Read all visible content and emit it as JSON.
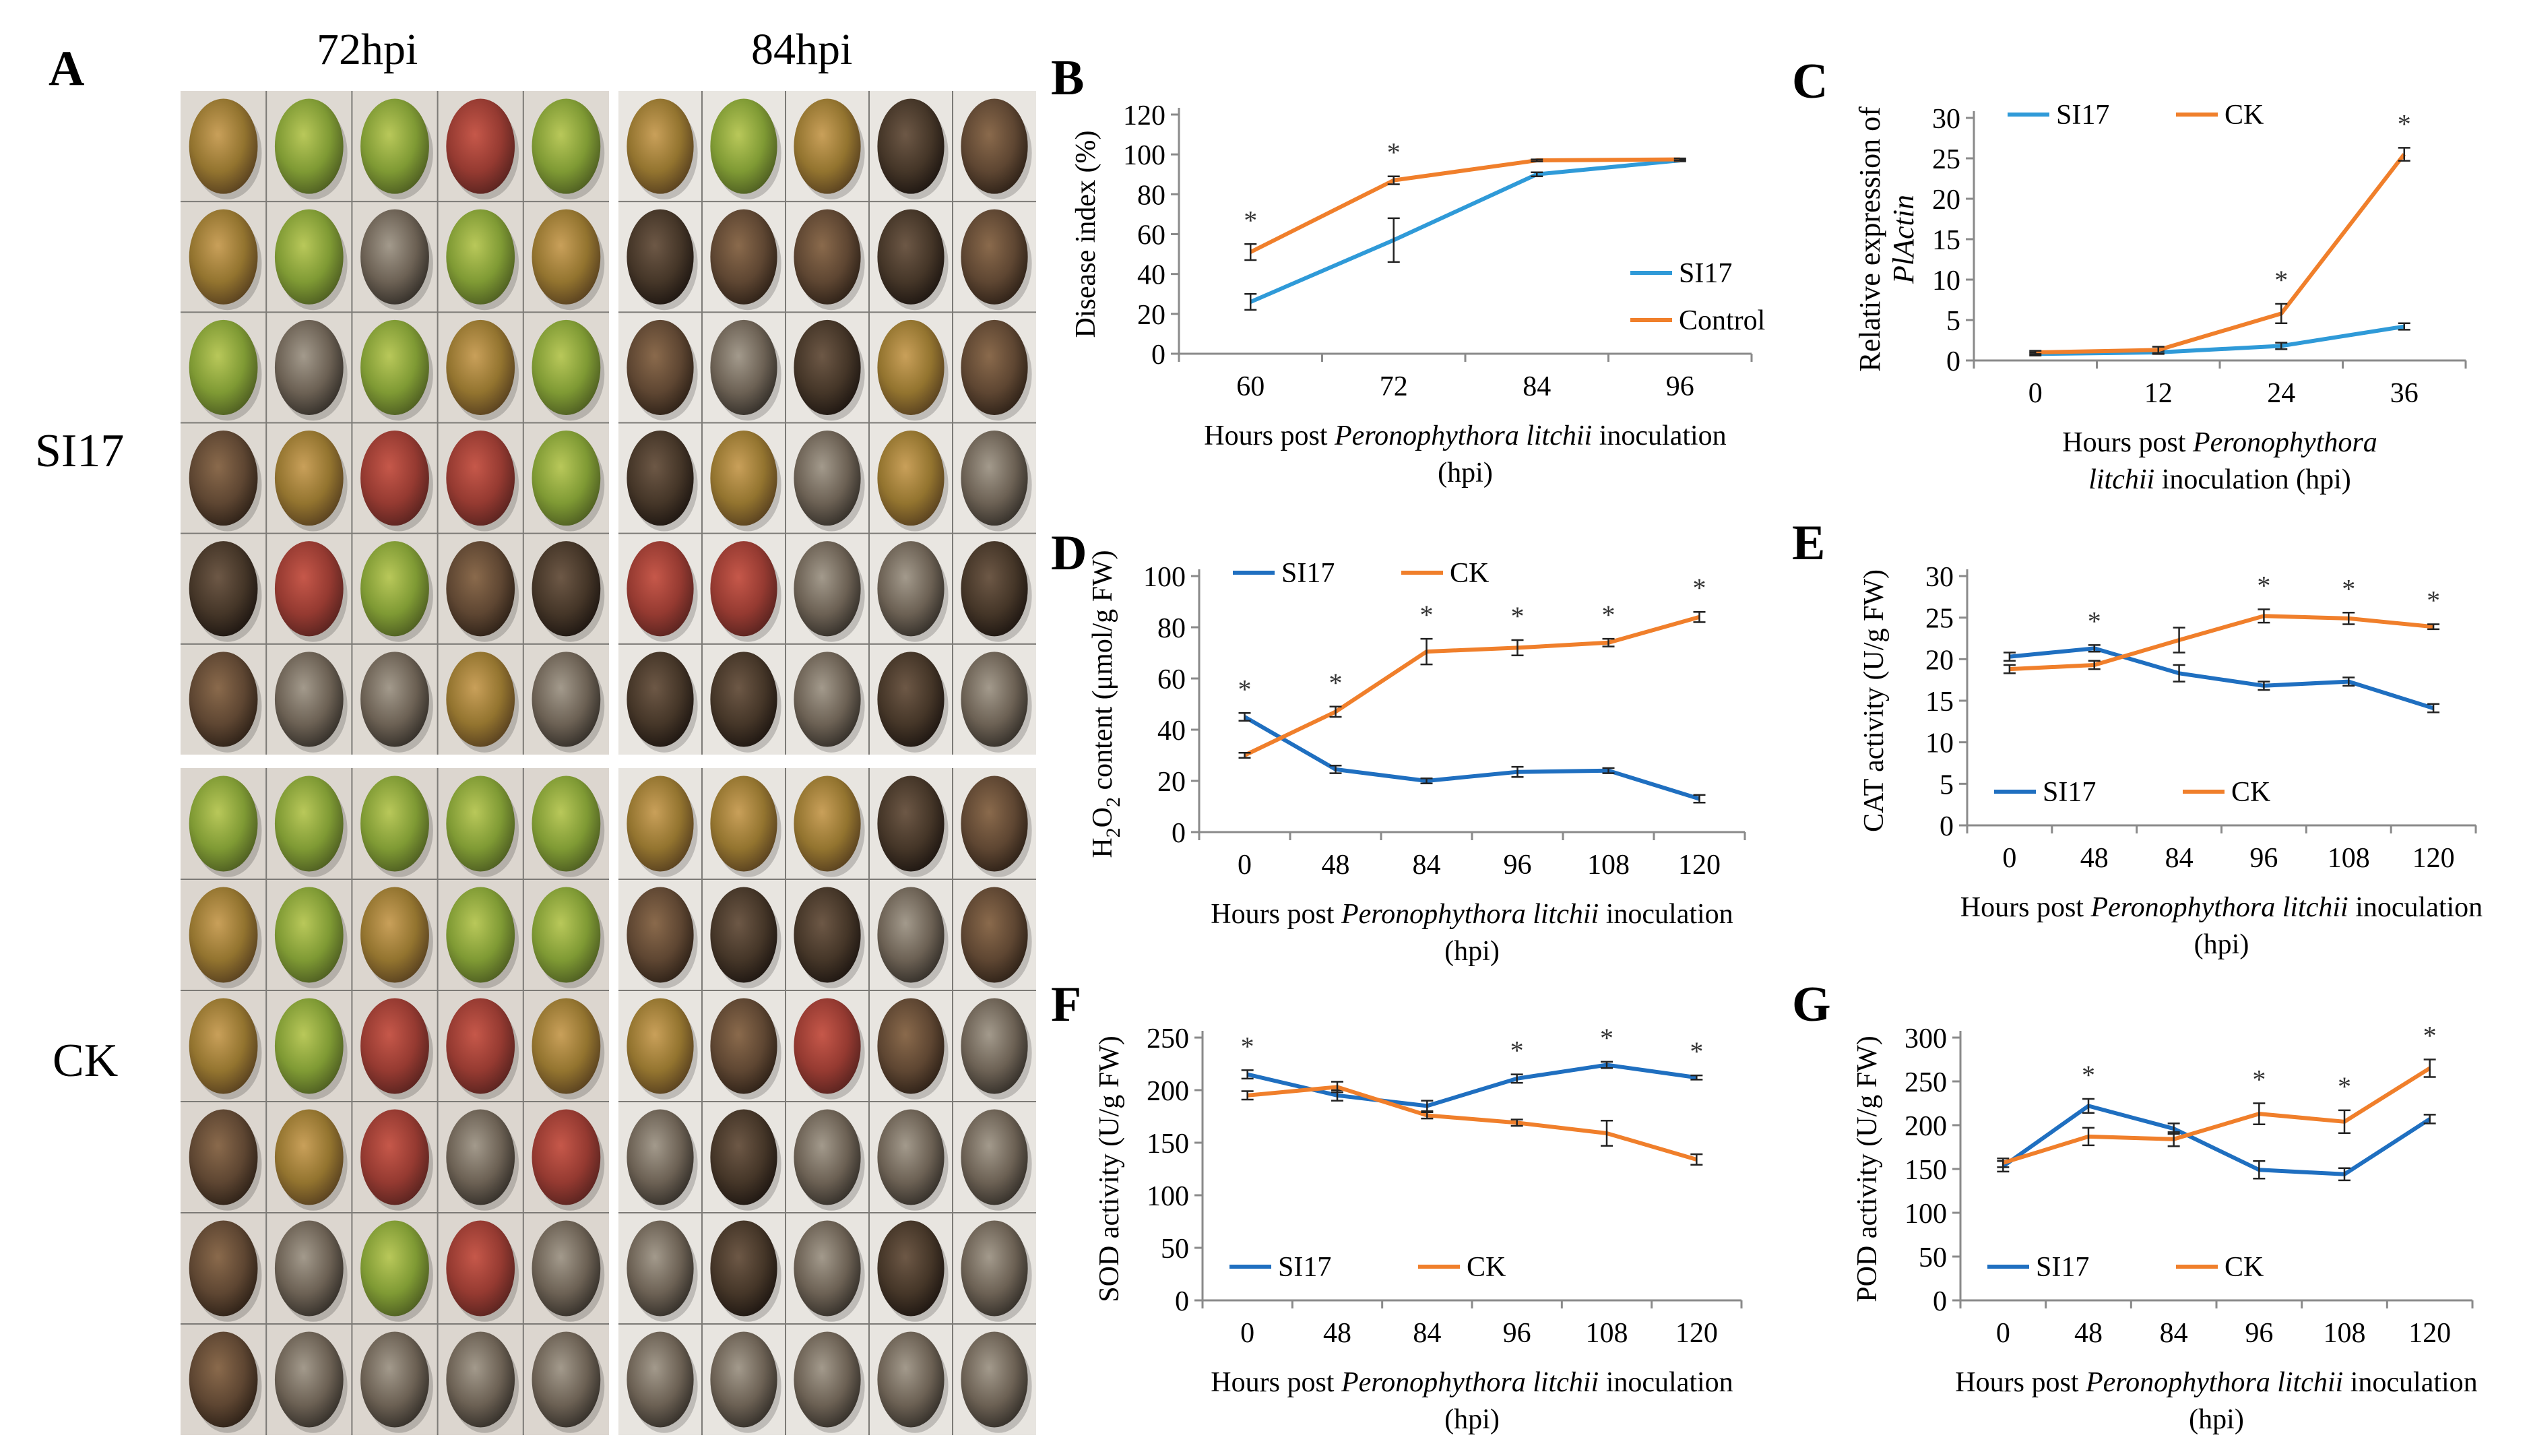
{
  "figure": {
    "panel_a": {
      "letter": "A",
      "columns": [
        "72hpi",
        "84hpi"
      ],
      "rows": [
        "SI17",
        "CK"
      ]
    },
    "colors": {
      "si17": "#2f86c9",
      "ck": "#f07f2b",
      "axis": "#8a8a8a"
    }
  },
  "chart_data": [
    {
      "id": "B",
      "letter": "B",
      "type": "line",
      "ylabel": "Disease index (%)",
      "xlabel_parts": [
        "Hours post ",
        "Peronophythora litchii",
        " inoculation"
      ],
      "xlabel_line2": "(hpi)",
      "categories": [
        "60",
        "72",
        "84",
        "96"
      ],
      "ylim": [
        0,
        120
      ],
      "yticks": [
        "0",
        "20",
        "40",
        "60",
        "80",
        "100",
        "120"
      ],
      "series": [
        {
          "name": "SI17",
          "color": "#2f9ad8",
          "values": [
            26,
            57,
            90,
            97
          ],
          "err": [
            4,
            11,
            1,
            0.5
          ]
        },
        {
          "name": "Control",
          "color": "#f07f2b",
          "values": [
            51,
            87,
            97,
            97.5
          ],
          "err": [
            4,
            2,
            0.5,
            0.5
          ]
        }
      ],
      "sig": [
        "*",
        "*",
        "",
        ""
      ],
      "legend": "right"
    },
    {
      "id": "C",
      "letter": "C",
      "type": "line",
      "ylabel_parts": [
        "Relative expression of ",
        "PlActin"
      ],
      "xlabel_parts": [
        "Hours post ",
        "Peronophythora",
        ""
      ],
      "xlabel_line2_parts": [
        "litchii",
        " inoculation (hpi)"
      ],
      "categories": [
        "0",
        "12",
        "24",
        "36"
      ],
      "ylim": [
        0,
        30
      ],
      "yticks": [
        "0",
        "5",
        "10",
        "15",
        "20",
        "25",
        "30"
      ],
      "series": [
        {
          "name": "SI17",
          "color": "#2f9ad8",
          "values": [
            0.8,
            1.0,
            1.8,
            4.2
          ],
          "err": [
            0.2,
            0.2,
            0.4,
            0.4
          ]
        },
        {
          "name": "CK",
          "color": "#f07f2b",
          "values": [
            1.0,
            1.3,
            5.8,
            25.5
          ],
          "err": [
            0.2,
            0.4,
            1.2,
            0.8
          ]
        }
      ],
      "sig": [
        "",
        "",
        "*",
        "*"
      ],
      "legend": "top"
    },
    {
      "id": "D",
      "letter": "D",
      "type": "line",
      "ylabel_h2o2": true,
      "ylabel_parts": [
        "H",
        "2",
        "O",
        "2",
        " content (μmol/g FW)"
      ],
      "xlabel_parts": [
        "Hours post ",
        "Peronophythora litchii",
        " inoculation"
      ],
      "xlabel_line2": "(hpi)",
      "categories": [
        "0",
        "48",
        "84",
        "96",
        "108",
        "120"
      ],
      "ylim": [
        0,
        100
      ],
      "yticks": [
        "0",
        "20",
        "40",
        "60",
        "80",
        "100"
      ],
      "series": [
        {
          "name": "SI17",
          "color": "#1f6fc0",
          "values": [
            45,
            24.5,
            20,
            23.5,
            24,
            13
          ],
          "err": [
            1.5,
            1.5,
            1,
            2,
            1,
            1.5
          ]
        },
        {
          "name": "CK",
          "color": "#f07f2b",
          "values": [
            30,
            47,
            70.5,
            72,
            74,
            84
          ],
          "err": [
            1,
            2,
            5,
            3,
            1.5,
            2
          ]
        }
      ],
      "sig": [
        "*",
        "*",
        "*",
        "*",
        "*",
        "*"
      ],
      "legend": "top"
    },
    {
      "id": "E",
      "letter": "E",
      "type": "line",
      "ylabel": "CAT activity (U/g FW)",
      "xlabel_parts": [
        "Hours post ",
        "Peronophythora litchii",
        " inoculation"
      ],
      "xlabel_line2": "(hpi)",
      "categories": [
        "0",
        "48",
        "84",
        "96",
        "108",
        "120"
      ],
      "ylim": [
        0,
        30
      ],
      "yticks": [
        "0",
        "5",
        "10",
        "15",
        "20",
        "25",
        "30"
      ],
      "series": [
        {
          "name": "SI17",
          "color": "#1f6fc0",
          "values": [
            20.3,
            21.3,
            18.3,
            16.8,
            17.3,
            14.1
          ],
          "err": [
            0.5,
            0.4,
            1,
            0.5,
            0.5,
            0.5
          ]
        },
        {
          "name": "CK",
          "color": "#f07f2b",
          "values": [
            18.8,
            19.3,
            22.3,
            25.2,
            24.9,
            23.9
          ],
          "err": [
            0.5,
            0.5,
            1.5,
            0.8,
            0.7,
            0.3
          ]
        }
      ],
      "sig": [
        "",
        "*",
        "",
        "*",
        "*",
        "*"
      ],
      "legend": "bottom"
    },
    {
      "id": "F",
      "letter": "F",
      "type": "line",
      "ylabel": "SOD activity (U/g FW)",
      "xlabel_parts": [
        "Hours post ",
        "Peronophythora litchii",
        " inoculation"
      ],
      "xlabel_line2": "(hpi)",
      "categories": [
        "0",
        "48",
        "84",
        "96",
        "108",
        "120"
      ],
      "ylim": [
        0,
        250
      ],
      "yticks": [
        "0",
        "50",
        "100",
        "150",
        "200",
        "250"
      ],
      "series": [
        {
          "name": "SI17",
          "color": "#1f6fc0",
          "values": [
            215,
            195,
            185,
            211,
            224,
            212
          ],
          "err": [
            4,
            5,
            5,
            4,
            3,
            2
          ]
        },
        {
          "name": "CK",
          "color": "#f07f2b",
          "values": [
            195,
            203,
            176,
            169,
            159,
            134
          ],
          "err": [
            4,
            5,
            3,
            3,
            12,
            5
          ]
        }
      ],
      "sig": [
        "*",
        "",
        "",
        "*",
        "*",
        "*"
      ],
      "legend": "bottom"
    },
    {
      "id": "G",
      "letter": "G",
      "type": "line",
      "ylabel": "POD activity (U/g FW)",
      "xlabel_parts": [
        "Hours post ",
        "Peronophythora litchii",
        " inoculation"
      ],
      "xlabel_line2": "(hpi)",
      "categories": [
        "0",
        "48",
        "84",
        "96",
        "108",
        "120"
      ],
      "ylim": [
        0,
        300
      ],
      "yticks": [
        "0",
        "50",
        "100",
        "150",
        "200",
        "250",
        "300"
      ],
      "series": [
        {
          "name": "SI17",
          "color": "#1f6fc0",
          "values": [
            153,
            222,
            196,
            149,
            144,
            207
          ],
          "err": [
            6,
            8,
            6,
            10,
            7,
            5
          ]
        },
        {
          "name": "CK",
          "color": "#f07f2b",
          "values": [
            157,
            187,
            184,
            213,
            204,
            265
          ],
          "err": [
            5,
            10,
            8,
            12,
            13,
            10
          ]
        }
      ],
      "sig": [
        "",
        "*",
        "",
        "*",
        "*",
        "*"
      ],
      "legend": "bottom"
    }
  ]
}
